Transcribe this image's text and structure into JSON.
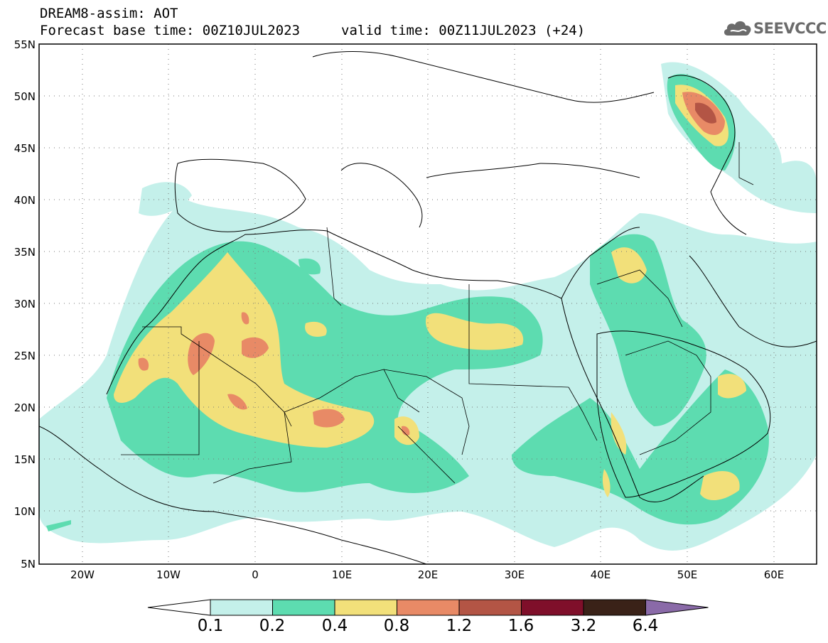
{
  "title": {
    "line1": "DREAM8-assim: AOT",
    "base_time": "Forecast base time: 00Z10JUL2023",
    "valid_time": "valid time: 00Z11JUL2023 (+24)"
  },
  "logo": {
    "icon": "cloud-icon",
    "text": "SEEVCCC"
  },
  "map": {
    "lat_ticks": [
      "55N",
      "50N",
      "45N",
      "40N",
      "35N",
      "30N",
      "25N",
      "20N",
      "15N",
      "10N",
      "5N"
    ],
    "lon_ticks": [
      "20W",
      "10W",
      "0",
      "10E",
      "20E",
      "30E",
      "40E",
      "50E",
      "60E"
    ],
    "lat_range": [
      5,
      55
    ],
    "lon_range": [
      -25,
      65
    ],
    "grid": true,
    "grid_style": "dotted"
  },
  "colorbar": {
    "levels": [
      "0.1",
      "0.2",
      "0.4",
      "0.8",
      "1.2",
      "1.6",
      "3.2",
      "6.4"
    ],
    "colors": [
      "#c4f0ea",
      "#5ddcb0",
      "#f2e07a",
      "#e88a66",
      "#b35545",
      "#7f0f2a",
      "#3a2218",
      "#8a6aa8"
    ]
  }
}
